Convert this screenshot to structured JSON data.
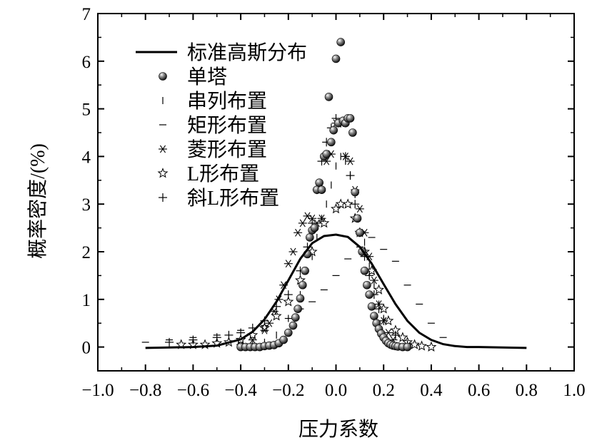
{
  "chart_data": {
    "type": "scatter",
    "title": "",
    "xlabel": "压力系数",
    "ylabel": "概率密度/(%)",
    "xlim": [
      -1.0,
      1.0
    ],
    "ylim": [
      -0.5,
      7
    ],
    "xticks": [
      "−1.0",
      "−0.8",
      "−0.6",
      "−0.4",
      "−0.2",
      "0.0",
      "0.2",
      "0.4",
      "0.6",
      "0.8",
      "1.0"
    ],
    "yticks": [
      "0",
      "1",
      "2",
      "3",
      "4",
      "5",
      "6",
      "7"
    ],
    "legend_position": "top-left",
    "grid": false,
    "series": [
      {
        "name": "标准高斯分布",
        "marker": "line",
        "x": [
          -0.8,
          -0.7,
          -0.6,
          -0.5,
          -0.4,
          -0.35,
          -0.3,
          -0.25,
          -0.2,
          -0.15,
          -0.1,
          -0.05,
          0.0,
          0.05,
          0.1,
          0.15,
          0.2,
          0.25,
          0.3,
          0.35,
          0.4,
          0.45,
          0.5,
          0.55,
          0.6,
          0.7,
          0.8
        ],
        "y": [
          -0.02,
          -0.01,
          0.0,
          0.03,
          0.16,
          0.32,
          0.58,
          0.95,
          1.4,
          1.85,
          2.18,
          2.33,
          2.36,
          2.31,
          2.1,
          1.75,
          1.32,
          0.9,
          0.55,
          0.3,
          0.15,
          0.06,
          0.02,
          0.0,
          0.0,
          -0.01,
          -0.02
        ]
      },
      {
        "name": "单塔",
        "marker": "sphere",
        "x": [
          -0.4,
          -0.38,
          -0.36,
          -0.34,
          -0.32,
          -0.3,
          -0.28,
          -0.26,
          -0.24,
          -0.22,
          -0.2,
          -0.18,
          -0.17,
          -0.16,
          -0.15,
          -0.14,
          -0.13,
          -0.12,
          -0.11,
          -0.1,
          -0.09,
          -0.08,
          -0.07,
          -0.06,
          -0.05,
          -0.04,
          -0.03,
          -0.02,
          -0.01,
          0.0,
          0.01,
          0.02,
          0.03,
          0.04,
          0.05,
          0.06,
          0.07,
          0.08,
          0.09,
          0.1,
          0.11,
          0.12,
          0.13,
          0.14,
          0.15,
          0.16,
          0.17,
          0.18,
          0.19,
          0.2,
          0.21,
          0.22,
          0.23,
          0.24,
          0.25,
          0.26,
          0.28,
          0.3
        ],
        "y": [
          0.0,
          0.0,
          0.0,
          0.0,
          0.0,
          0.02,
          0.03,
          0.04,
          0.08,
          0.15,
          0.3,
          0.45,
          0.62,
          0.8,
          1.02,
          1.3,
          1.6,
          1.95,
          2.3,
          2.45,
          2.5,
          3.3,
          3.45,
          3.3,
          4.0,
          4.05,
          5.25,
          4.3,
          4.55,
          6.05,
          4.7,
          6.4,
          4.75,
          4.7,
          4.8,
          4.8,
          4.5,
          3.25,
          2.7,
          2.4,
          2.0,
          1.6,
          1.3,
          1.1,
          0.85,
          0.65,
          0.5,
          0.38,
          0.28,
          0.2,
          0.13,
          0.08,
          0.05,
          0.03,
          0.02,
          0.01,
          0.0,
          0.0
        ]
      },
      {
        "name": "串列布置",
        "marker": "vbar",
        "x": [
          -0.4,
          -0.35,
          -0.3,
          -0.25,
          -0.2,
          -0.15,
          -0.1,
          -0.08,
          -0.06,
          -0.04,
          -0.02,
          0.0,
          0.02,
          0.04,
          0.06,
          0.08,
          0.1,
          0.12,
          0.14,
          0.16,
          0.18,
          0.2,
          0.25,
          0.3
        ],
        "y": [
          0.0,
          0.05,
          0.1,
          0.25,
          0.6,
          1.1,
          1.9,
          2.3,
          2.7,
          3.0,
          3.4,
          3.8,
          4.0,
          3.9,
          3.6,
          3.2,
          2.7,
          2.2,
          1.7,
          1.3,
          0.9,
          0.6,
          0.25,
          0.05
        ]
      },
      {
        "name": "矩形布置",
        "marker": "hbar",
        "x": [
          -0.8,
          -0.7,
          -0.6,
          -0.5,
          -0.4,
          -0.3,
          -0.2,
          -0.15,
          -0.1,
          -0.05,
          0.0,
          0.05,
          0.1,
          0.15,
          0.2,
          0.25,
          0.3,
          0.35,
          0.4,
          0.45
        ],
        "y": [
          0.1,
          0.15,
          0.2,
          0.25,
          0.35,
          0.45,
          0.6,
          0.8,
          0.95,
          1.2,
          1.5,
          1.85,
          2.1,
          2.3,
          2.05,
          1.8,
          1.3,
          0.9,
          0.5,
          0.2
        ]
      },
      {
        "name": "菱形布置",
        "marker": "asterisk",
        "x": [
          -0.4,
          -0.35,
          -0.3,
          -0.28,
          -0.26,
          -0.24,
          -0.22,
          -0.2,
          -0.18,
          -0.16,
          -0.14,
          -0.12,
          -0.1,
          -0.08,
          -0.06,
          -0.04,
          -0.02,
          0.0,
          0.02,
          0.04,
          0.06,
          0.08,
          0.1,
          0.12,
          0.14,
          0.16,
          0.18,
          0.2,
          0.22,
          0.24
        ],
        "y": [
          0.05,
          0.15,
          0.35,
          0.5,
          0.75,
          1.0,
          1.3,
          1.75,
          2.0,
          2.4,
          2.6,
          2.75,
          2.7,
          2.6,
          2.7,
          3.9,
          4.05,
          4.7,
          4.7,
          4.0,
          3.9,
          3.3,
          2.9,
          2.4,
          1.9,
          1.4,
          0.9,
          0.55,
          0.3,
          0.15
        ]
      },
      {
        "name": "L形布置",
        "marker": "star",
        "x": [
          -0.65,
          -0.6,
          -0.55,
          -0.5,
          -0.45,
          -0.4,
          -0.35,
          -0.3,
          -0.25,
          -0.2,
          -0.15,
          -0.1,
          -0.05,
          0.0,
          0.02,
          0.05,
          0.08,
          0.1,
          0.12,
          0.15,
          0.18,
          0.2,
          0.22,
          0.25,
          0.28,
          0.3,
          0.33,
          0.36,
          0.4
        ],
        "y": [
          0.05,
          0.05,
          0.05,
          0.08,
          0.1,
          0.15,
          0.25,
          0.4,
          0.65,
          0.95,
          1.4,
          2.0,
          2.6,
          2.9,
          3.0,
          3.0,
          2.7,
          2.4,
          2.0,
          1.6,
          1.2,
          0.8,
          0.55,
          0.35,
          0.2,
          0.1,
          0.05,
          0.02,
          0.0
        ]
      },
      {
        "name": "斜L形布置",
        "marker": "plus",
        "x": [
          -0.7,
          -0.6,
          -0.5,
          -0.45,
          -0.4,
          -0.35,
          -0.3,
          -0.25,
          -0.2,
          -0.15,
          -0.12,
          -0.1,
          -0.08,
          -0.06,
          -0.04,
          -0.02,
          0.0,
          0.02,
          0.04,
          0.06,
          0.08,
          0.1,
          0.12,
          0.14,
          0.16,
          0.18,
          0.2,
          0.25,
          0.3
        ],
        "y": [
          0.1,
          0.15,
          0.2,
          0.25,
          0.3,
          0.4,
          0.55,
          0.85,
          1.1,
          1.6,
          2.1,
          2.6,
          3.3,
          3.9,
          4.3,
          4.6,
          4.8,
          4.7,
          4.0,
          3.6,
          3.0,
          2.4,
          1.9,
          1.5,
          1.1,
          0.8,
          0.55,
          0.25,
          0.05
        ]
      }
    ]
  }
}
